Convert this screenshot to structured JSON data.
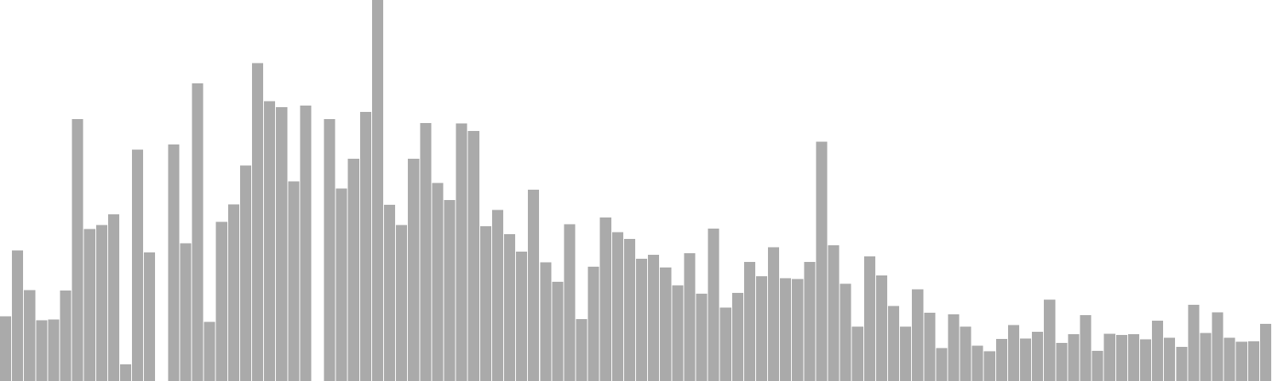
{
  "chart_data": {
    "type": "bar",
    "title": "",
    "xlabel": "",
    "ylabel": "",
    "ylim": [
      0,
      100
    ],
    "grid": false,
    "legend": "none",
    "bar_color": "#aaaaaa",
    "values": [
      17.0,
      34.3,
      23.9,
      15.9,
      16.1,
      23.7,
      68.7,
      39.9,
      40.9,
      43.8,
      4.4,
      60.7,
      33.8,
      0,
      62.1,
      36.1,
      78.1,
      15.5,
      41.8,
      46.4,
      56.6,
      83.4,
      73.4,
      71.9,
      52.4,
      72.3,
      0,
      68.7,
      50.5,
      58.3,
      70.6,
      100,
      46.2,
      40.9,
      58.3,
      67.7,
      52.0,
      47.5,
      67.6,
      65.6,
      40.6,
      44.9,
      38.5,
      34.0,
      50.2,
      31.1,
      26.0,
      41.1,
      16.2,
      30.0,
      42.9,
      39.1,
      37.3,
      32.1,
      33.1,
      29.8,
      25.1,
      33.5,
      22.9,
      40.0,
      19.3,
      23.1,
      31.2,
      27.5,
      35.1,
      27.0,
      26.8,
      31.3,
      62.8,
      35.6,
      25.5,
      14.3,
      32.7,
      27.7,
      19.7,
      14.3,
      24.1,
      17.9,
      8.6,
      17.5,
      14.3,
      9.3,
      7.8,
      11.0,
      14.7,
      11.1,
      12.9,
      21.4,
      10.0,
      12.3,
      17.3,
      7.9,
      12.4,
      12.1,
      12.3,
      10.9,
      15.8,
      11.4,
      9.0,
      20.0,
      12.6,
      18.0,
      11.4,
      10.3,
      10.4,
      15.0
    ]
  }
}
